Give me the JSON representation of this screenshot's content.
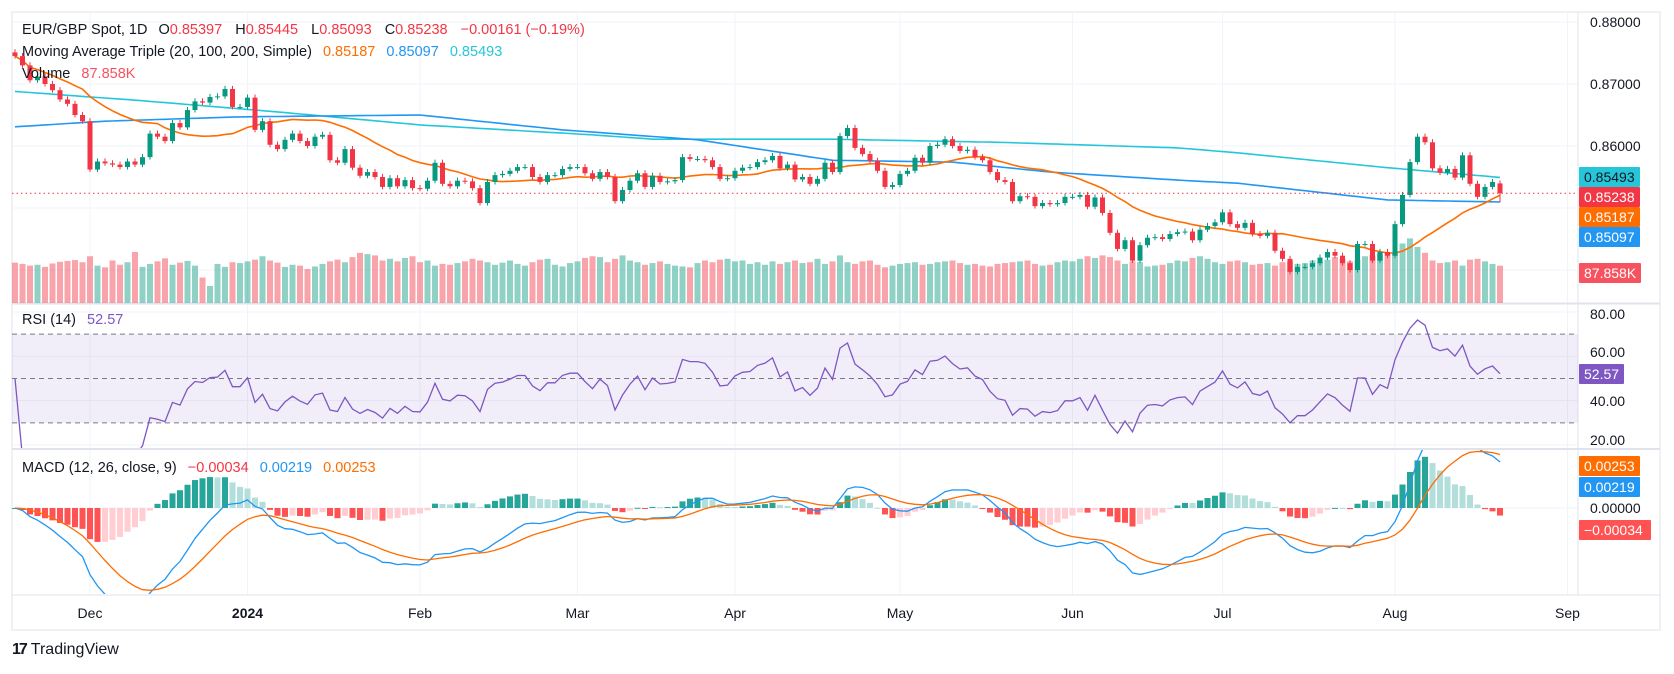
{
  "header": {
    "symbol": "EUR/GBP Spot, 1D",
    "o_label": "O",
    "o_value": "0.85397",
    "h_label": "H",
    "h_value": "0.85445",
    "l_label": "L",
    "l_value": "0.85093",
    "c_label": "C",
    "c_value": "0.85238",
    "change": "−0.00161 (−0.19%)"
  },
  "ma_legend": {
    "title": "Moving Average Triple (20, 100, 200, Simple)",
    "ma20": "0.85187",
    "ma100": "0.85097",
    "ma200": "0.85493"
  },
  "volume_legend": {
    "title": "Volume",
    "value": "87.858K"
  },
  "rsi_legend": {
    "title": "RSI (14)",
    "value": "52.57"
  },
  "macd_legend": {
    "title": "MACD (12, 26, close, 9)",
    "hist": "−0.00034",
    "macd": "0.00219",
    "signal": "0.00253"
  },
  "price_axis": [
    "0.88000",
    "0.87000",
    "0.86000"
  ],
  "rsi_axis": [
    "80.00",
    "60.00",
    "40.00",
    "20.00"
  ],
  "macd_axis": [
    "0.00000"
  ],
  "badges": {
    "ma200": "0.85493",
    "close": "0.85238",
    "ma20": "0.85187",
    "ma100": "0.85097",
    "volume": "87.858K",
    "rsi": "52.57",
    "signal": "0.00253",
    "macd": "0.00219",
    "hist": "−0.00034"
  },
  "branding": "TradingView",
  "colors": {
    "up": "#089981",
    "down": "#f23645",
    "ma20": "#ff6d00",
    "ma100": "#2196f3",
    "ma200": "#26c6da",
    "rsi": "#7e57c2"
  },
  "chart_data": {
    "type": "candlestick",
    "title": "EUR/GBP Spot, 1D",
    "last_open": 0.85397,
    "last_high": 0.85445,
    "last_low": 0.85093,
    "last_close": 0.85238,
    "ylim": [
      0.835,
      0.88
    ],
    "time_axis": [
      {
        "label": "Dec",
        "bar": 10
      },
      {
        "label": "2024",
        "bar": 31,
        "year": true
      },
      {
        "label": "Feb",
        "bar": 54
      },
      {
        "label": "Mar",
        "bar": 75
      },
      {
        "label": "Apr",
        "bar": 96
      },
      {
        "label": "May",
        "bar": 118
      },
      {
        "label": "Jun",
        "bar": 141
      },
      {
        "label": "Jul",
        "bar": 161
      },
      {
        "label": "Aug",
        "bar": 184
      },
      {
        "label": "Sep",
        "bar": 207
      }
    ],
    "close": [
      0.8745,
      0.873,
      0.8706,
      0.8712,
      0.87,
      0.869,
      0.8675,
      0.8668,
      0.865,
      0.864,
      0.8562,
      0.8575,
      0.8572,
      0.857,
      0.8566,
      0.8575,
      0.857,
      0.8582,
      0.862,
      0.8615,
      0.8608,
      0.8637,
      0.863,
      0.8658,
      0.8672,
      0.867,
      0.8679,
      0.868,
      0.8692,
      0.8663,
      0.8663,
      0.8678,
      0.8626,
      0.864,
      0.8602,
      0.8595,
      0.861,
      0.862,
      0.8608,
      0.86,
      0.8615,
      0.8618,
      0.8577,
      0.8573,
      0.8595,
      0.8565,
      0.8552,
      0.8558,
      0.855,
      0.8534,
      0.8548,
      0.8535,
      0.8545,
      0.8532,
      0.8531,
      0.8544,
      0.8573,
      0.8539,
      0.8535,
      0.8544,
      0.8543,
      0.8532,
      0.8508,
      0.8542,
      0.8553,
      0.8555,
      0.856,
      0.8566,
      0.8566,
      0.855,
      0.8542,
      0.8553,
      0.8553,
      0.8563,
      0.8566,
      0.8566,
      0.8556,
      0.8547,
      0.8558,
      0.855,
      0.8511,
      0.8529,
      0.8544,
      0.8556,
      0.8534,
      0.8552,
      0.8542,
      0.8543,
      0.8545,
      0.8582,
      0.8579,
      0.8579,
      0.8577,
      0.8566,
      0.8547,
      0.8548,
      0.856,
      0.8565,
      0.8566,
      0.8574,
      0.8577,
      0.8584,
      0.8564,
      0.857,
      0.8546,
      0.855,
      0.8539,
      0.8547,
      0.8573,
      0.8558,
      0.8616,
      0.8629,
      0.8597,
      0.8587,
      0.8576,
      0.856,
      0.8534,
      0.8537,
      0.8555,
      0.856,
      0.8581,
      0.8573,
      0.86,
      0.8602,
      0.8611,
      0.86,
      0.8592,
      0.8594,
      0.8582,
      0.8577,
      0.8558,
      0.8545,
      0.8542,
      0.8511,
      0.8519,
      0.8518,
      0.8503,
      0.8508,
      0.8506,
      0.8508,
      0.8518,
      0.8518,
      0.8521,
      0.8502,
      0.8517,
      0.8492,
      0.846,
      0.8434,
      0.8448,
      0.8415,
      0.844,
      0.8452,
      0.8453,
      0.845,
      0.8458,
      0.8461,
      0.8462,
      0.8448,
      0.8465,
      0.8471,
      0.8477,
      0.8493,
      0.8474,
      0.8468,
      0.8476,
      0.8458,
      0.8455,
      0.846,
      0.8431,
      0.8418,
      0.8397,
      0.8405,
      0.8405,
      0.8411,
      0.842,
      0.8429,
      0.8423,
      0.8411,
      0.84,
      0.8442,
      0.8442,
      0.8415,
      0.8429,
      0.8423,
      0.8474,
      0.8521,
      0.8574,
      0.8615,
      0.8606,
      0.8564,
      0.8557,
      0.8563,
      0.8549,
      0.8585,
      0.8539,
      0.8518,
      0.8534,
      0.8542,
      0.85238
    ],
    "volume_k": [
      95,
      92,
      88,
      90,
      85,
      93,
      97,
      99,
      101,
      96,
      110,
      88,
      84,
      100,
      90,
      96,
      120,
      85,
      92,
      98,
      105,
      90,
      95,
      99,
      88,
      60,
      40,
      92,
      85,
      96,
      94,
      98,
      102,
      110,
      100,
      95,
      85,
      90,
      88,
      80,
      86,
      92,
      98,
      102,
      96,
      108,
      118,
      115,
      112,
      100,
      104,
      98,
      106,
      110,
      96,
      100,
      88,
      92,
      90,
      94,
      98,
      104,
      100,
      96,
      90,
      95,
      100,
      92,
      88,
      96,
      102,
      104,
      90,
      86,
      94,
      98,
      106,
      110,
      108,
      96,
      104,
      112,
      100,
      96,
      90,
      94,
      98,
      92,
      88,
      86,
      84,
      94,
      100,
      96,
      102,
      104,
      98,
      100,
      92,
      96,
      90,
      98,
      92,
      96,
      100,
      94,
      96,
      104,
      92,
      98,
      112,
      96,
      92,
      98,
      100,
      90,
      84,
      88,
      92,
      94,
      96,
      90,
      92,
      96,
      98,
      100,
      94,
      90,
      92,
      88,
      86,
      92,
      94,
      96,
      98,
      100,
      92,
      88,
      90,
      96,
      100,
      98,
      104,
      110,
      106,
      112,
      108,
      100,
      92,
      98,
      96,
      86,
      88,
      90,
      94,
      100,
      98,
      106,
      110,
      104,
      96,
      92,
      98,
      100,
      96,
      90,
      92,
      94,
      88,
      96,
      98,
      92,
      94,
      100,
      96,
      102,
      108,
      104,
      98,
      102,
      110,
      112,
      116,
      120,
      118,
      140,
      152,
      132,
      118,
      100,
      94,
      96,
      100,
      88,
      102,
      104,
      98,
      92,
      87.858
    ],
    "ma100_waypoints": [
      [
        0,
        0.8631
      ],
      [
        12,
        0.864
      ],
      [
        30,
        0.8647
      ],
      [
        54,
        0.865
      ],
      [
        73,
        0.8626
      ],
      [
        91,
        0.861
      ],
      [
        109,
        0.8577
      ],
      [
        125,
        0.8574
      ],
      [
        138,
        0.8558
      ],
      [
        155,
        0.8545
      ],
      [
        163,
        0.854
      ],
      [
        183,
        0.8513
      ],
      [
        198,
        0.85097
      ]
    ],
    "ma200_waypoints": [
      [
        0,
        0.8688
      ],
      [
        17,
        0.8673
      ],
      [
        35,
        0.8655
      ],
      [
        54,
        0.8634
      ],
      [
        77,
        0.8618
      ],
      [
        85,
        0.8611
      ],
      [
        109,
        0.8611
      ],
      [
        131,
        0.8606
      ],
      [
        155,
        0.8597
      ],
      [
        163,
        0.8589
      ],
      [
        183,
        0.8565
      ],
      [
        198,
        0.85493
      ]
    ],
    "rsi": {
      "period": 14,
      "upper": 70,
      "middle": 50,
      "lower": 30,
      "ylim": [
        20,
        80
      ]
    },
    "macd": {
      "fast": 12,
      "slow": 26,
      "signal": 9
    }
  }
}
